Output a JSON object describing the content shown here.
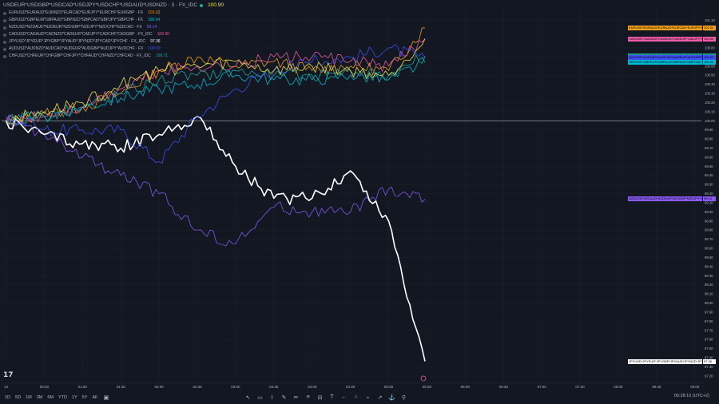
{
  "colors": {
    "bg": "#131722",
    "grid": "#1e222d",
    "text": "#b2b5be"
  },
  "legend": {
    "main": {
      "name": "USDEUR*USDGBP*USDCAD*USDJPY*USDCHF*USDAUD*USDNZD · 3 · FX_IDC",
      "value": "100.90",
      "color": "#f0f0f0",
      "value_color": "#f5e94d"
    },
    "rows": [
      {
        "name": "EURUSD*EURAUD*EURNZD*EURCAD*EURJPY*EURCHF*EURGBP · FX",
        "value": "101.02",
        "color": "#f7a21b"
      },
      {
        "name": "GBPUSD*GBPEUR*GBPAUD*GBPNZD*GBPCAD*GBPJPY*GBPCHF · FX",
        "value": "100.64",
        "color": "#00bcd4"
      },
      {
        "name": "NZDUSD*NZDAUD*NZDEUR*NZDGBP*NZDJPY*NZDCHF*NZDCAD · FX",
        "value": "99.14",
        "color": "#8b5cf6"
      },
      {
        "name": "CADUSD*CADAUD*CADNZD*CADEUR*CADJPY*CADCHF*CADGBP · FX_IDC",
        "value": "100.90",
        "color": "#ef5da8"
      },
      {
        "name": "JPYUSD*JPYEUR*JPYGBP*JPYAUD*JPYNZD*JPYCAD*JPYCHF · FX_IDC",
        "value": "97.36",
        "color": "#ffffff"
      },
      {
        "name": "AUDUSD*AUDNZD*AUDCAD*AUDEUR*AUDGBP*AUDJPY*AUDCHF · FX",
        "value": "100.69",
        "color": "#3f51f5"
      },
      {
        "name": "CHFUSD*CHFEUR*CHFGBP*CHFJPY*CHFAUD*CHFNZD*CHFCAD · FX_IDC",
        "value": "100.71",
        "color": "#26a69a"
      }
    ]
  },
  "chart_data": {
    "type": "line",
    "x": [
      "00:00",
      "00:30",
      "01:00",
      "01:30",
      "02:00",
      "02:30",
      "03:00",
      "03:30",
      "04:00",
      "04:30",
      "05:00",
      "05:28"
    ],
    "xaxis_ticks": [
      "14",
      "00:30",
      "01:00",
      "01:30",
      "02:00",
      "02:30",
      "03:00",
      "03:30",
      "04:00",
      "04:30",
      "05:00",
      "05:30",
      "06:00",
      "06:30",
      "07:00",
      "07:30",
      "08:00",
      "08:30",
      "09:00"
    ],
    "yaxis_ticks": [
      "97.20",
      "97.30",
      "97.40",
      "97.50",
      "97.60",
      "97.70",
      "97.80",
      "97.90",
      "98.00",
      "98.10",
      "98.20",
      "98.30",
      "98.40",
      "98.50",
      "98.60",
      "98.70",
      "98.80",
      "98.90",
      "99.00",
      "99.10",
      "99.20",
      "99.30",
      "99.40",
      "99.50",
      "99.60",
      "99.70",
      "99.80",
      "99.90",
      "100.00",
      "100.10",
      "100.20",
      "100.30",
      "100.40",
      "100.50",
      "100.60",
      "100.70",
      "100.80",
      "100.90",
      "101.00",
      "101.10"
    ],
    "ylim": [
      97.12,
      101.22
    ],
    "reference_line": 100.0,
    "series": [
      {
        "name": "EURUSD*EURAUD*EURNZD*EURCAD*EURJPY*EURCHF*EURGBP",
        "color": "#f7a21b",
        "width": 0.9,
        "values": [
          99.98,
          100.08,
          100.15,
          100.3,
          100.55,
          100.7,
          100.6,
          100.65,
          100.55,
          100.6,
          100.55,
          101.02
        ]
      },
      {
        "name": "GBPUSD*GBPEUR*GBPAUD*GBPNZD*GBPCAD*GBPJPY*GBPCHF",
        "color": "#00bcd4",
        "width": 0.9,
        "values": [
          100.0,
          100.05,
          100.15,
          100.25,
          100.35,
          100.4,
          100.5,
          100.45,
          100.45,
          100.5,
          100.45,
          100.64
        ]
      },
      {
        "name": "NZDUSD*NZDAUD*NZDEUR*NZDGBP*NZDJPY*NZDCHF*NZDCAD",
        "color": "#8b5cf6",
        "width": 0.9,
        "values": [
          100.0,
          99.85,
          99.6,
          99.4,
          99.2,
          98.8,
          98.65,
          99.05,
          99.0,
          99.0,
          99.25,
          99.14
        ]
      },
      {
        "name": "CADUSD*CADAUD*CADNZD*CADEUR*CADJPY*CADCHF*CADGBP",
        "color": "#ef5da8",
        "width": 0.9,
        "values": [
          100.0,
          100.05,
          100.15,
          100.35,
          100.55,
          100.6,
          100.6,
          100.7,
          100.7,
          100.65,
          100.6,
          100.9
        ]
      },
      {
        "name": "JPYUSD*JPYEUR*JPYGBP*JPYAUD*JPYNZD*JPYCAD*JPYCHF",
        "color": "#ffffff",
        "width": 1.6,
        "values": [
          100.0,
          99.85,
          99.75,
          99.7,
          99.85,
          100.05,
          99.5,
          99.15,
          99.15,
          99.45,
          98.9,
          97.36
        ]
      },
      {
        "name": "AUDUSD*AUDNZD*AUDCAD*AUDEUR*AUDGBP*AUDJPY*AUDCHF",
        "color": "#3f51f5",
        "width": 0.9,
        "values": [
          100.05,
          99.9,
          99.9,
          99.9,
          99.55,
          100.05,
          100.35,
          100.55,
          100.65,
          100.7,
          100.8,
          100.69
        ]
      },
      {
        "name": "CHFUSD*CHFEUR*CHFGBP*CHFJPY*CHFAUD*CHFNZD*CHFCAD",
        "color": "#26a69a",
        "width": 0.9,
        "values": [
          100.0,
          100.05,
          100.15,
          100.3,
          100.45,
          100.5,
          100.55,
          100.5,
          100.5,
          100.55,
          100.5,
          100.71
        ]
      },
      {
        "name": "USDEUR*USDGBP*USDCAD*USDJPY*USDCHF*USDAUD*USDNZD",
        "color": "#f5e94d",
        "width": 0.9,
        "values": [
          100.0,
          100.1,
          100.2,
          100.4,
          100.55,
          100.6,
          100.65,
          100.55,
          100.6,
          100.55,
          100.5,
          100.9
        ]
      }
    ]
  },
  "price_tags": [
    {
      "label": "EURUSD*EURAUD*EURNZD*EURCAD*EURJPY*EURCHF*EURGBP",
      "value": "101.02",
      "color": "#f7a21b"
    },
    {
      "label": "USDEUR*USDGBP*USDCAD*USDJPY*USDCHF*USDAUD*USDNZD",
      "value": "100.90",
      "color": "#f5e94d"
    },
    {
      "label": "CADUSD*CADAUD*CADNZD*CADEUR*CADJPY*CADCHF*CADGBP",
      "value": "100.90",
      "color": "#ef5da8"
    },
    {
      "label": "CHFUSD*CHFEUR*CHFGBP*CHFJPY*CHFAUD*CHFNZD*CHFCAD",
      "value": "100.71",
      "color": "#26a69a"
    },
    {
      "label": "AUDUSD*AUDNZD*AUDCAD*AUDEUR*AUDGBP*AUDJPY*AUDCHF",
      "value": "100.69",
      "color": "#3f51f5"
    },
    {
      "label": "GBPUSD*GBPEUR*GBPAUD*GBPNZD*GBPCAD*GBPJPY*GBPCHF",
      "value": "100.64",
      "color": "#00bcd4"
    },
    {
      "label": "NZDUSD*NZDAUD*NZDEUR*NZDGBP*NZDJPY*NZDCHF*NZDCAD",
      "value": "99.14",
      "color": "#8b5cf6"
    },
    {
      "label": "JPYUSD*JPYEUR*JPYGBP*JPYAUD*JPYNZD*JPYCAD*JPYCHF",
      "value": "97.36",
      "color": "#ffffff"
    }
  ],
  "bottom": {
    "timeframes": [
      "1D",
      "5D",
      "1M",
      "3M",
      "6M",
      "YTD",
      "1Y",
      "5Y",
      "All"
    ],
    "tool_icons": [
      "cursor-icon",
      "rectangle-icon",
      "path-icon",
      "brush-icon",
      "pencil-icon",
      "fib-icon",
      "channel-icon",
      "text-icon",
      "arrow-icon",
      "circle-icon",
      "polyline-icon",
      "trend-line-icon",
      "anchor-icon",
      "magnet-icon"
    ],
    "clock": "05:28:10 (UTC+2)"
  },
  "logo": "17"
}
